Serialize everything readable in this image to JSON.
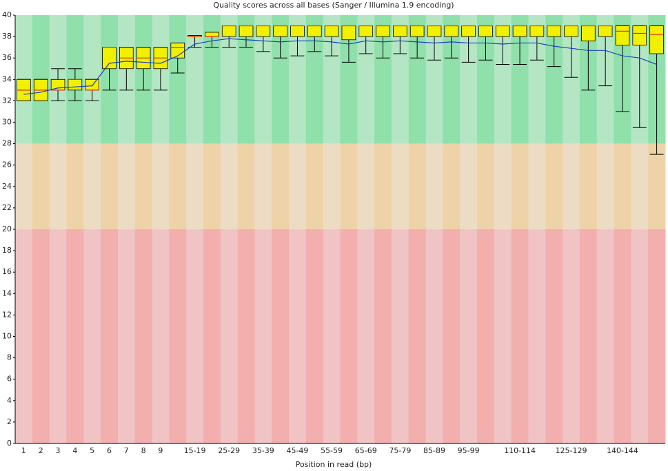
{
  "chart_data": {
    "type": "boxplot",
    "title": "Quality scores across all bases (Sanger / Illumina 1.9 encoding)",
    "x_label": "Position in read (bp)",
    "categories": [
      "1",
      "2",
      "3",
      "4",
      "5",
      "6",
      "7",
      "8",
      "9",
      null,
      "15-19",
      null,
      "25-29",
      null,
      "35-39",
      null,
      "45-49",
      null,
      "55-59",
      null,
      "65-69",
      null,
      "75-79",
      null,
      "85-89",
      null,
      "95-99",
      null,
      null,
      "110-114",
      null,
      null,
      "125-129",
      null,
      null,
      "140-144",
      null,
      null
    ],
    "whisker_low": [
      32,
      32,
      32,
      32,
      32,
      33,
      33,
      33,
      33,
      34.6,
      37,
      37,
      37,
      37,
      36.6,
      36,
      36.2,
      36.6,
      36.2,
      35.6,
      36.4,
      36,
      36.4,
      36,
      35.8,
      36,
      35.6,
      35.8,
      35.4,
      35.4,
      35.8,
      35.2,
      34.2,
      33,
      33.4,
      31,
      29.5,
      27
    ],
    "q1": [
      32,
      32,
      33,
      33,
      33,
      35,
      35,
      35,
      35,
      36,
      38,
      38,
      38,
      38,
      38,
      38,
      38,
      38,
      38,
      37.7,
      38,
      38,
      38,
      38,
      38,
      38,
      38,
      38,
      38,
      38,
      38,
      38,
      38,
      37.6,
      38,
      37.2,
      37.2,
      36.4
    ],
    "median": [
      33,
      33,
      33,
      34,
      33,
      37,
      36,
      36,
      36,
      37,
      38,
      38,
      39,
      39,
      39,
      39,
      39,
      39,
      39,
      39,
      39,
      39,
      39,
      39,
      39,
      39,
      39,
      39,
      39,
      39,
      39,
      39,
      39,
      39,
      39,
      38.5,
      38.3,
      38.2
    ],
    "q3": [
      34,
      34,
      34,
      34,
      34,
      37,
      37,
      37,
      37,
      37.4,
      38.1,
      38.4,
      39,
      39,
      39,
      39,
      39,
      39,
      39,
      39,
      39,
      39,
      39,
      39,
      39,
      39,
      39,
      39,
      39,
      39,
      39,
      39,
      39,
      39,
      39,
      39,
      39,
      39
    ],
    "whisker_high": [
      34,
      34,
      35,
      35,
      34,
      37,
      37,
      37,
      37,
      37.4,
      38.1,
      38.4,
      39,
      39,
      39,
      39,
      39,
      39,
      39,
      39,
      39,
      39,
      39,
      39,
      39,
      39,
      39,
      39,
      39,
      39,
      39,
      39,
      39,
      39,
      39,
      39,
      39,
      39
    ],
    "mean": [
      32.6,
      32.8,
      33.2,
      33.3,
      33.4,
      35.5,
      35.7,
      35.6,
      35.5,
      36.2,
      37.3,
      37.6,
      37.8,
      37.7,
      37.6,
      37.5,
      37.6,
      37.6,
      37.5,
      37.3,
      37.6,
      37.5,
      37.6,
      37.5,
      37.4,
      37.5,
      37.4,
      37.4,
      37.3,
      37.4,
      37.4,
      37.1,
      36.9,
      36.7,
      36.7,
      36.2,
      36.0,
      35.4
    ],
    "box_color": "#f0f000",
    "median_color": "#e03020",
    "mean_color": "#1f3fbf",
    "zones": [
      {
        "lower": 28,
        "upper": 40,
        "colors": [
          "#b4e6c4",
          "#8fe0aa"
        ]
      },
      {
        "lower": 20,
        "upper": 28,
        "colors": [
          "#ecdcc4",
          "#eed3a8"
        ]
      },
      {
        "lower": 0,
        "upper": 20,
        "colors": [
          "#f0c4c4",
          "#f3aeae"
        ]
      }
    ],
    "ylim": [
      0,
      40
    ],
    "yticks": [
      0,
      2,
      4,
      6,
      8,
      10,
      12,
      14,
      16,
      18,
      20,
      22,
      24,
      26,
      28,
      30,
      32,
      34,
      36,
      38,
      40
    ]
  }
}
